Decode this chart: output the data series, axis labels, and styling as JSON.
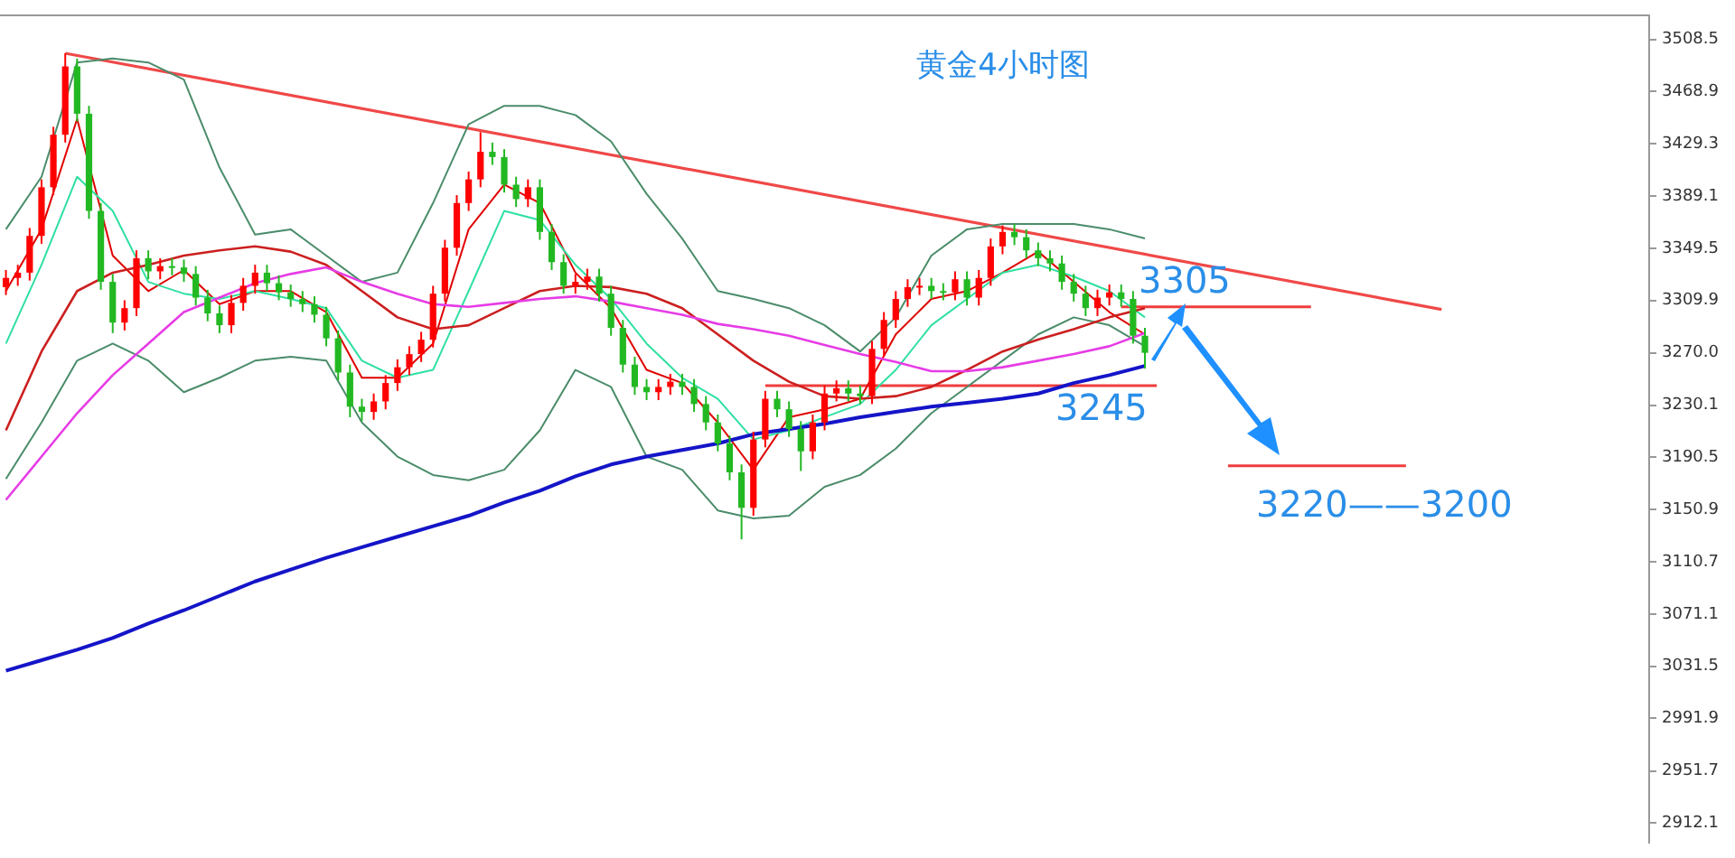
{
  "chart_data": {
    "type": "candlestick",
    "title": "黄金4小时图",
    "categories": [
      null,
      null,
      null,
      null,
      null,
      null,
      null,
      null,
      null,
      null,
      null,
      null,
      null,
      null,
      null,
      null,
      null,
      null,
      null,
      null,
      null,
      null,
      null,
      null,
      null,
      null,
      null,
      null,
      null,
      null,
      null,
      null,
      null,
      null,
      null,
      null,
      null,
      null,
      null,
      null,
      null,
      null,
      null,
      null,
      null,
      null,
      null,
      null,
      null,
      null,
      null,
      null,
      null,
      null,
      null,
      null,
      null,
      null,
      null,
      null,
      null,
      null,
      null,
      null,
      null,
      null,
      null,
      null,
      null,
      null,
      null,
      null,
      null,
      null,
      null,
      null,
      null,
      null,
      null,
      null,
      null,
      null,
      null,
      null,
      null,
      null,
      null,
      null,
      null,
      null,
      null,
      null,
      null,
      null,
      null,
      null,
      null,
      null,
      null,
      null,
      null,
      null,
      null,
      null,
      null,
      null,
      null,
      null,
      null,
      null,
      null,
      null,
      null,
      null,
      null,
      null,
      null,
      null,
      null,
      null,
      null,
      null,
      null,
      null,
      null,
      null,
      null,
      null,
      null,
      null,
      null,
      null,
      null,
      null,
      null,
      null,
      null,
      null,
      null
    ],
    "ohlc": [
      [
        3320,
        3333,
        3314,
        3327
      ],
      [
        3327,
        3337,
        3321,
        3331
      ],
      [
        3331,
        3365,
        3325,
        3359
      ],
      [
        3359,
        3402,
        3353,
        3396
      ],
      [
        3396,
        3442,
        3390,
        3436
      ],
      [
        3436,
        3498,
        3430,
        3488
      ],
      [
        3488,
        3494,
        3446,
        3452
      ],
      [
        3452,
        3458,
        3372,
        3378
      ],
      [
        3378,
        3384,
        3318,
        3324
      ],
      [
        3324,
        3330,
        3285,
        3293
      ],
      [
        3293,
        3310,
        3287,
        3304
      ],
      [
        3304,
        3348,
        3298,
        3342
      ],
      [
        3342,
        3348,
        3326,
        3332
      ],
      [
        3332,
        3342,
        3326,
        3336
      ],
      [
        3336,
        3342,
        3329,
        3335
      ],
      [
        3335,
        3341,
        3324,
        3330
      ],
      [
        3330,
        3336,
        3306,
        3312
      ],
      [
        3312,
        3318,
        3294,
        3300
      ],
      [
        3300,
        3306,
        3285,
        3291
      ],
      [
        3291,
        3314,
        3285,
        3308
      ],
      [
        3308,
        3327,
        3302,
        3321
      ],
      [
        3321,
        3337,
        3315,
        3331
      ],
      [
        3331,
        3337,
        3317,
        3323
      ],
      [
        3323,
        3329,
        3310,
        3316
      ],
      [
        3316,
        3322,
        3305,
        3311
      ],
      [
        3311,
        3317,
        3301,
        3307
      ],
      [
        3307,
        3313,
        3293,
        3299
      ],
      [
        3299,
        3305,
        3275,
        3281
      ],
      [
        3281,
        3287,
        3249,
        3255
      ],
      [
        3255,
        3261,
        3221,
        3229
      ],
      [
        3229,
        3235,
        3218,
        3225
      ],
      [
        3225,
        3239,
        3219,
        3233
      ],
      [
        3233,
        3253,
        3227,
        3247
      ],
      [
        3247,
        3265,
        3241,
        3259
      ],
      [
        3259,
        3275,
        3253,
        3269
      ],
      [
        3269,
        3286,
        3263,
        3280
      ],
      [
        3280,
        3321,
        3274,
        3315
      ],
      [
        3315,
        3356,
        3309,
        3350
      ],
      [
        3350,
        3390,
        3344,
        3384
      ],
      [
        3384,
        3408,
        3378,
        3402
      ],
      [
        3402,
        3438,
        3396,
        3423
      ],
      [
        3423,
        3430,
        3413,
        3419
      ],
      [
        3419,
        3425,
        3392,
        3398
      ],
      [
        3398,
        3404,
        3381,
        3387
      ],
      [
        3387,
        3402,
        3381,
        3396
      ],
      [
        3396,
        3402,
        3356,
        3362
      ],
      [
        3362,
        3368,
        3333,
        3339
      ],
      [
        3339,
        3345,
        3315,
        3321
      ],
      [
        3321,
        3330,
        3315,
        3324
      ],
      [
        3324,
        3334,
        3318,
        3328
      ],
      [
        3328,
        3334,
        3309,
        3315
      ],
      [
        3315,
        3321,
        3283,
        3289
      ],
      [
        3289,
        3295,
        3255,
        3261
      ],
      [
        3261,
        3267,
        3238,
        3244
      ],
      [
        3244,
        3250,
        3234,
        3240
      ],
      [
        3240,
        3250,
        3234,
        3244
      ],
      [
        3244,
        3254,
        3238,
        3248
      ],
      [
        3248,
        3254,
        3238,
        3244
      ],
      [
        3244,
        3250,
        3225,
        3231
      ],
      [
        3231,
        3237,
        3211,
        3217
      ],
      [
        3217,
        3223,
        3195,
        3201
      ],
      [
        3201,
        3207,
        3173,
        3179
      ],
      [
        3179,
        3185,
        3128,
        3152
      ],
      [
        3152,
        3210,
        3146,
        3204
      ],
      [
        3204,
        3241,
        3198,
        3235
      ],
      [
        3235,
        3241,
        3221,
        3227
      ],
      [
        3227,
        3233,
        3206,
        3212
      ],
      [
        3212,
        3218,
        3180,
        3195
      ],
      [
        3195,
        3223,
        3189,
        3217
      ],
      [
        3217,
        3245,
        3211,
        3239
      ],
      [
        3239,
        3249,
        3233,
        3243
      ],
      [
        3243,
        3249,
        3233,
        3239
      ],
      [
        3239,
        3245,
        3231,
        3237
      ],
      [
        3237,
        3279,
        3231,
        3273
      ],
      [
        3273,
        3301,
        3267,
        3295
      ],
      [
        3295,
        3317,
        3289,
        3311
      ],
      [
        3311,
        3326,
        3305,
        3320
      ],
      [
        3320,
        3327,
        3314,
        3321
      ],
      [
        3321,
        3327,
        3311,
        3317
      ],
      [
        3317,
        3323,
        3310,
        3316
      ],
      [
        3316,
        3332,
        3310,
        3326
      ],
      [
        3326,
        3332,
        3306,
        3312
      ],
      [
        3312,
        3333,
        3306,
        3327
      ],
      [
        3327,
        3357,
        3321,
        3351
      ],
      [
        3351,
        3367,
        3345,
        3362
      ],
      [
        3362,
        3368,
        3352,
        3358
      ],
      [
        3358,
        3364,
        3342,
        3348
      ],
      [
        3348,
        3354,
        3336,
        3342
      ],
      [
        3342,
        3348,
        3332,
        3338
      ],
      [
        3338,
        3344,
        3318,
        3324
      ],
      [
        3324,
        3330,
        3309,
        3315
      ],
      [
        3315,
        3321,
        3298,
        3304
      ],
      [
        3304,
        3318,
        3298,
        3312
      ],
      [
        3312,
        3322,
        3306,
        3316
      ],
      [
        3316,
        3322,
        3305,
        3311
      ],
      [
        3311,
        3317,
        3277,
        3283
      ],
      [
        3283,
        3289,
        3258,
        3270
      ],
      null,
      null,
      null,
      null,
      null,
      null,
      null,
      null,
      null,
      null,
      null,
      null,
      null,
      null,
      null,
      null,
      null,
      null,
      null,
      null,
      null,
      null,
      null,
      null,
      null,
      null,
      null,
      null,
      null,
      null,
      null,
      null,
      null,
      null,
      null,
      null,
      null,
      null,
      null,
      null,
      null,
      null
    ],
    "colors": [
      "#ff0000",
      "#ff0000",
      "#ff0000",
      "#ff0000",
      "#ff0000",
      "#ff0000",
      "#22b822",
      "#22b822",
      "#22b822",
      "#22b822",
      "#ff0000",
      "#ff0000",
      "#22b822",
      "#ff0000",
      "#22b822",
      "#22b822",
      "#22b822",
      "#22b822",
      "#22b822",
      "#ff0000",
      "#ff0000",
      "#ff0000",
      "#22b822",
      "#22b822",
      "#22b822",
      "#22b822",
      "#22b822",
      "#22b822",
      "#22b822",
      "#22b822",
      "#22b822",
      "#ff0000",
      "#ff0000",
      "#ff0000",
      "#ff0000",
      "#ff0000",
      "#ff0000",
      "#ff0000",
      "#ff0000",
      "#ff0000",
      "#ff0000",
      "#22b822",
      "#22b822",
      "#22b822",
      "#ff0000",
      "#22b822",
      "#22b822",
      "#22b822",
      "#ff0000",
      "#ff0000",
      "#22b822",
      "#22b822",
      "#22b822",
      "#22b822",
      "#22b822",
      "#ff0000",
      "#ff0000",
      "#22b822",
      "#22b822",
      "#22b822",
      "#22b822",
      "#22b822",
      "#22b822",
      "#ff0000",
      "#ff0000",
      "#22b822",
      "#22b822",
      "#22b822",
      "#ff0000",
      "#ff0000",
      "#ff0000",
      "#22b822",
      "#22b822",
      "#ff0000",
      "#ff0000",
      "#ff0000",
      "#ff0000",
      "#ff0000",
      "#22b822",
      "#22b822",
      "#ff0000",
      "#22b822",
      "#ff0000",
      "#ff0000",
      "#ff0000",
      "#22b822",
      "#22b822",
      "#22b822",
      "#22b822",
      "#22b822",
      "#22b822",
      "#22b822",
      "#ff0000",
      "#ff0000",
      "#22b822",
      "#22b822",
      "#22b822",
      null,
      null,
      null,
      null,
      null,
      null,
      null,
      null,
      null,
      null,
      null,
      null,
      null,
      null,
      null,
      null,
      null,
      null,
      null,
      null,
      null,
      null,
      null,
      null,
      null,
      null,
      null,
      null,
      null,
      null,
      null,
      null,
      null,
      null,
      null,
      null,
      null,
      null,
      null,
      null,
      null,
      null
    ],
    "series": [
      {
        "type": "line",
        "color": "#1414c8",
        "values": [
          3028,
          null,
          null,
          3036,
          null,
          null,
          3044,
          null,
          null,
          3053,
          null,
          null,
          3064,
          null,
          null,
          3074,
          null,
          null,
          3085,
          null,
          null,
          3096,
          null,
          null,
          3105,
          null,
          null,
          3114,
          null,
          null,
          3122,
          null,
          null,
          3130,
          null,
          null,
          3138,
          null,
          null,
          3146,
          null,
          null,
          3156,
          null,
          null,
          3165,
          null,
          null,
          3176,
          null,
          null,
          3185,
          null,
          null,
          3191,
          null,
          null,
          3196,
          null,
          null,
          3201,
          null,
          null,
          3208,
          null,
          null,
          3212,
          null,
          null,
          3216,
          null,
          null,
          3221,
          null,
          null,
          3225,
          null,
          null,
          3229,
          null,
          null,
          3232,
          null,
          null,
          3235,
          null,
          null,
          3239,
          null,
          null,
          3247,
          null,
          null,
          3253,
          null,
          null,
          3260,
          null,
          null,
          null,
          null,
          null,
          null,
          null,
          null,
          null,
          null,
          null,
          null,
          null,
          null,
          null,
          null,
          null,
          null,
          null,
          null,
          null,
          null,
          null,
          null,
          null,
          null,
          null,
          null,
          null,
          null,
          null,
          null,
          null,
          null,
          null,
          null,
          null,
          null,
          null,
          null,
          null,
          null
        ]
      },
      {
        "type": "line",
        "color": "#e63ce6",
        "values": [
          3158,
          null,
          null,
          3191,
          null,
          null,
          3224,
          null,
          null,
          3253,
          null,
          null,
          3277,
          null,
          null,
          3301,
          null,
          null,
          3312,
          null,
          null,
          3323,
          null,
          null,
          3330,
          null,
          null,
          3335,
          null,
          null,
          3324,
          null,
          null,
          3315,
          null,
          null,
          3307,
          null,
          null,
          3305,
          null,
          null,
          3308,
          null,
          null,
          3311,
          null,
          null,
          3313,
          null,
          null,
          3309,
          null,
          null,
          3304,
          null,
          null,
          3299,
          null,
          null,
          3292,
          null,
          null,
          3288,
          null,
          null,
          3283,
          null,
          null,
          3276,
          null,
          null,
          3269,
          null,
          null,
          3263,
          null,
          null,
          3256,
          null,
          null,
          3256,
          null,
          null,
          3259,
          null,
          null,
          3264,
          null,
          null,
          3269,
          null,
          null,
          3275,
          null,
          null,
          3285,
          null,
          null,
          null,
          null,
          null,
          null,
          null,
          null,
          null,
          null,
          null,
          null,
          null,
          null,
          null,
          null,
          null,
          null,
          null,
          null,
          null,
          null,
          null,
          null,
          null,
          null,
          null,
          null,
          null,
          null,
          null,
          null,
          null,
          null,
          null,
          null,
          null,
          null,
          null,
          null,
          null,
          null
        ]
      },
      {
        "type": "line",
        "color": "#cc1f1f",
        "values": [
          3211,
          null,
          null,
          3271,
          null,
          null,
          3317,
          null,
          null,
          3331,
          null,
          null,
          3337,
          null,
          null,
          3344,
          null,
          null,
          3348,
          null,
          null,
          3351,
          null,
          null,
          3347,
          null,
          null,
          3337,
          null,
          null,
          3317,
          null,
          null,
          3297,
          null,
          null,
          3288,
          null,
          null,
          3291,
          null,
          null,
          3304,
          null,
          null,
          3317,
          null,
          null,
          3321,
          null,
          null,
          3320,
          null,
          null,
          3315,
          null,
          null,
          3304,
          null,
          null,
          3284,
          null,
          null,
          3264,
          null,
          null,
          3248,
          null,
          null,
          3237,
          null,
          null,
          3235,
          null,
          null,
          3237,
          null,
          null,
          3244,
          null,
          null,
          3257,
          null,
          null,
          3271,
          null,
          null,
          3280,
          null,
          null,
          3288,
          null,
          null,
          3297,
          null,
          null,
          3304,
          null,
          null,
          null,
          null,
          null,
          null,
          null,
          null,
          null,
          null,
          null,
          null,
          null,
          null,
          null,
          null,
          null,
          null,
          null,
          null,
          null,
          null,
          null,
          null,
          null,
          null,
          null,
          null,
          null,
          null,
          null,
          null,
          null,
          null,
          null,
          null,
          null,
          null,
          null,
          null,
          null,
          null
        ]
      },
      {
        "type": "line",
        "color": "#4a8c6a",
        "values": [
          3364,
          null,
          null,
          3404,
          null,
          null,
          3491,
          null,
          null,
          3494,
          null,
          null,
          3491,
          null,
          null,
          3478,
          null,
          null,
          3411,
          null,
          null,
          3360,
          null,
          null,
          3364,
          null,
          null,
          3344,
          null,
          null,
          3324,
          null,
          null,
          3331,
          null,
          null,
          3384,
          null,
          null,
          3444,
          null,
          null,
          3458,
          null,
          null,
          3458,
          null,
          null,
          3451,
          null,
          null,
          3431,
          null,
          null,
          3391,
          null,
          null,
          3357,
          null,
          null,
          3317,
          null,
          null,
          3311,
          null,
          null,
          3304,
          null,
          null,
          3291,
          null,
          null,
          3271,
          null,
          null,
          3297,
          null,
          null,
          3344,
          null,
          null,
          3364,
          null,
          null,
          3368,
          null,
          null,
          3368,
          null,
          null,
          3368,
          null,
          null,
          3364,
          null,
          null,
          3357,
          null,
          null,
          null,
          null,
          null,
          null,
          null,
          null,
          null,
          null,
          null,
          null,
          null,
          null,
          null,
          null,
          null,
          null,
          null,
          null,
          null,
          null,
          null,
          null,
          null,
          null,
          null,
          null,
          null,
          null,
          null,
          null,
          null,
          null,
          null,
          null,
          null,
          null,
          null,
          null,
          null,
          null
        ]
      },
      {
        "type": "line",
        "color": "#4a8c6a",
        "values": [
          3174,
          null,
          null,
          3217,
          null,
          null,
          3264,
          null,
          null,
          3277,
          null,
          null,
          3264,
          null,
          null,
          3240,
          null,
          null,
          3251,
          null,
          null,
          3264,
          null,
          null,
          3267,
          null,
          null,
          3264,
          null,
          null,
          3217,
          null,
          null,
          3191,
          null,
          null,
          3177,
          null,
          null,
          3173,
          null,
          null,
          3181,
          null,
          null,
          3211,
          null,
          null,
          3257,
          null,
          null,
          3244,
          null,
          null,
          3191,
          null,
          null,
          3181,
          null,
          null,
          3150,
          null,
          null,
          3144,
          null,
          null,
          3146,
          null,
          null,
          3168,
          null,
          null,
          3177,
          null,
          null,
          3197,
          null,
          null,
          3224,
          null,
          null,
          3244,
          null,
          null,
          3264,
          null,
          null,
          3284,
          null,
          null,
          3297,
          null,
          null,
          3291,
          null,
          null,
          3275,
          null,
          null,
          null,
          null,
          null,
          null,
          null,
          null,
          null,
          null,
          null,
          null,
          null,
          null,
          null,
          null,
          null,
          null,
          null,
          null,
          null,
          null,
          null,
          null,
          null,
          null,
          null,
          null,
          null,
          null,
          null,
          null,
          null,
          null,
          null,
          null,
          null,
          null,
          null,
          null,
          null,
          null
        ]
      },
      {
        "type": "line",
        "color": "#2ee0a0",
        "values": [
          3277,
          null,
          null,
          3337,
          null,
          null,
          3404,
          null,
          null,
          3378,
          null,
          null,
          3324,
          null,
          null,
          3315,
          null,
          null,
          3311,
          null,
          null,
          3317,
          null,
          null,
          3311,
          null,
          null,
          3304,
          null,
          null,
          3264,
          null,
          null,
          3251,
          null,
          null,
          3257,
          null,
          null,
          3317,
          null,
          null,
          3378,
          null,
          null,
          3371,
          null,
          null,
          3337,
          null,
          null,
          3311,
          null,
          null,
          3277,
          null,
          null,
          3251,
          null,
          null,
          3235,
          null,
          null,
          3204,
          null,
          null,
          3211,
          null,
          null,
          3221,
          null,
          null,
          3231,
          null,
          null,
          3257,
          null,
          null,
          3291,
          null,
          null,
          3311,
          null,
          null,
          3331,
          null,
          null,
          3337,
          null,
          null,
          3328,
          null,
          null,
          3317,
          null,
          null,
          3297,
          null,
          null,
          null,
          null,
          null,
          null,
          null,
          null,
          null,
          null,
          null,
          null,
          null,
          null,
          null,
          null,
          null,
          null,
          null,
          null,
          null,
          null,
          null,
          null,
          null,
          null,
          null,
          null,
          null,
          null,
          null,
          null,
          null,
          null,
          null,
          null,
          null,
          null,
          null,
          null,
          null,
          null
        ]
      },
      {
        "type": "line",
        "color": "#e00000",
        "values": [
          3317,
          null,
          null,
          3364,
          null,
          null,
          3448,
          null,
          null,
          3344,
          null,
          null,
          3317,
          null,
          null,
          3333,
          null,
          null,
          3307,
          null,
          null,
          3317,
          null,
          null,
          3317,
          null,
          null,
          3301,
          null,
          null,
          3251,
          null,
          null,
          3251,
          null,
          null,
          3277,
          null,
          null,
          3364,
          null,
          null,
          3398,
          null,
          null,
          3384,
          null,
          null,
          3331,
          null,
          null,
          3304,
          null,
          null,
          3257,
          null,
          null,
          3247,
          null,
          null,
          3217,
          null,
          null,
          3181,
          null,
          null,
          3221,
          null,
          null,
          3227,
          null,
          null,
          3235,
          null,
          null,
          3284,
          null,
          null,
          3311,
          null,
          null,
          3317,
          null,
          null,
          3331,
          null,
          null,
          3347,
          null,
          null,
          3324,
          null,
          null,
          3301,
          null,
          null,
          3284,
          null,
          null,
          null,
          null,
          null,
          null,
          null,
          null,
          null,
          null,
          null,
          null,
          null,
          null,
          null,
          null,
          null,
          null,
          null,
          null,
          null,
          null,
          null,
          null,
          null,
          null,
          null,
          null,
          null,
          null,
          null,
          null,
          null,
          null,
          null,
          null,
          null,
          null,
          null,
          null,
          null,
          null
        ]
      },
      {
        "type": "line",
        "color": "#f04848",
        "values": [
          null,
          null,
          null,
          null,
          null,
          3498,
          null,
          null,
          null,
          null,
          null,
          null,
          null,
          null,
          null,
          null,
          null,
          null,
          null,
          null,
          null,
          null,
          null,
          null,
          null,
          null,
          null,
          null,
          null,
          null,
          null,
          null,
          null,
          null,
          null,
          null,
          null,
          null,
          null,
          null,
          null,
          null,
          null,
          null,
          null,
          null,
          null,
          null,
          null,
          null,
          null,
          null,
          null,
          null,
          null,
          null,
          null,
          null,
          null,
          null,
          null,
          null,
          null,
          null,
          null,
          null,
          null,
          null,
          null,
          null,
          null,
          null,
          null,
          null,
          null,
          null,
          null,
          null,
          null,
          null,
          null,
          null,
          null,
          null,
          null,
          null,
          null,
          null,
          null,
          null,
          null,
          null,
          null,
          null,
          null,
          null,
          null,
          null,
          null,
          null,
          null,
          null,
          null,
          null,
          null,
          null,
          null,
          null,
          null,
          null,
          null,
          null,
          null,
          null,
          null,
          null,
          null,
          null,
          null,
          null,
          null,
          3303,
          null,
          null,
          null,
          null,
          null,
          null,
          null,
          null,
          null,
          null,
          null,
          null,
          null,
          null,
          null,
          null,
          null
        ]
      },
      {
        "type": "line",
        "color": "#f03c3c",
        "values": [
          null,
          null,
          null,
          null,
          null,
          null,
          null,
          null,
          null,
          null,
          null,
          null,
          null,
          null,
          null,
          null,
          null,
          null,
          null,
          null,
          null,
          null,
          null,
          null,
          null,
          null,
          null,
          null,
          null,
          null,
          null,
          null,
          null,
          null,
          null,
          null,
          null,
          null,
          null,
          null,
          null,
          null,
          null,
          null,
          null,
          null,
          null,
          null,
          null,
          null,
          null,
          null,
          null,
          null,
          null,
          null,
          null,
          null,
          null,
          null,
          null,
          null,
          null,
          null,
          null,
          null,
          null,
          null,
          null,
          null,
          null,
          null,
          null,
          null,
          null,
          null,
          null,
          null,
          null,
          null,
          null,
          null,
          null,
          null,
          null,
          null,
          null,
          null,
          null,
          null,
          null,
          null,
          null,
          null,
          3305,
          null,
          null,
          null,
          null,
          null,
          null,
          null,
          null,
          null,
          null,
          null,
          null,
          null,
          null,
          null,
          3305,
          null,
          null,
          null,
          null,
          null,
          null,
          null,
          null,
          null,
          null,
          null,
          null,
          null,
          null,
          null,
          null,
          null,
          null,
          null,
          null,
          null,
          null,
          null,
          null,
          null,
          null,
          null,
          null
        ]
      },
      {
        "type": "line",
        "color": "#f03c3c",
        "values": [
          null,
          null,
          null,
          null,
          null,
          null,
          null,
          null,
          null,
          null,
          null,
          null,
          null,
          null,
          null,
          null,
          null,
          null,
          null,
          null,
          null,
          null,
          null,
          null,
          null,
          null,
          null,
          null,
          null,
          null,
          null,
          null,
          null,
          null,
          null,
          null,
          null,
          null,
          null,
          null,
          null,
          null,
          null,
          null,
          null,
          null,
          null,
          null,
          null,
          null,
          null,
          null,
          null,
          null,
          null,
          null,
          null,
          null,
          null,
          null,
          null,
          null,
          null,
          null,
          3245,
          null,
          null,
          null,
          null,
          null,
          null,
          null,
          null,
          null,
          null,
          null,
          null,
          null,
          null,
          null,
          null,
          null,
          null,
          null,
          null,
          null,
          null,
          null,
          null,
          null,
          null,
          null,
          null,
          null,
          null,
          null,
          null,
          3245,
          null,
          null,
          null,
          null,
          null,
          null,
          null,
          null,
          null,
          null,
          null,
          null,
          null,
          null,
          null,
          null,
          null,
          null,
          null,
          null,
          null,
          null,
          null,
          null,
          null,
          null,
          null,
          null,
          null,
          null,
          null,
          null,
          null,
          null,
          null,
          null,
          null,
          null,
          null,
          null,
          null
        ]
      },
      {
        "type": "line",
        "color": "#f03c3c",
        "values": [
          null,
          null,
          null,
          null,
          null,
          null,
          null,
          null,
          null,
          null,
          null,
          null,
          null,
          null,
          null,
          null,
          null,
          null,
          null,
          null,
          null,
          null,
          null,
          null,
          null,
          null,
          null,
          null,
          null,
          null,
          null,
          null,
          null,
          null,
          null,
          null,
          null,
          null,
          null,
          null,
          null,
          null,
          null,
          null,
          null,
          null,
          null,
          null,
          null,
          null,
          null,
          null,
          null,
          null,
          null,
          null,
          null,
          null,
          null,
          null,
          null,
          null,
          null,
          null,
          null,
          null,
          null,
          null,
          null,
          null,
          null,
          null,
          null,
          null,
          null,
          null,
          null,
          null,
          null,
          null,
          null,
          null,
          null,
          null,
          null,
          null,
          null,
          null,
          null,
          null,
          null,
          null,
          null,
          null,
          null,
          null,
          null,
          null,
          null,
          null,
          null,
          null,
          null,
          3184,
          null,
          null,
          null,
          null,
          null,
          null,
          null,
          null,
          null,
          null,
          null,
          null,
          null,
          null,
          3184,
          null,
          null,
          null,
          null,
          null,
          null,
          null,
          null,
          null,
          null,
          null,
          null,
          null,
          null,
          null,
          null,
          null,
          null,
          null,
          null
        ]
      }
    ],
    "annotations": [
      {
        "text": "3305",
        "y": 3305
      },
      {
        "text": "3245",
        "y": 3245
      },
      {
        "text": "3220——3200",
        "y": 3184
      }
    ],
    "ylim": [
      2897,
      3527
    ],
    "yticks": [
      2912.1,
      2951.7,
      2991.9,
      3031.5,
      3071.1,
      3110.7,
      3150.9,
      3190.5,
      3230.1,
      {
        "value": 3270,
        "label": "3270.0"
      },
      3309.9,
      3349.5,
      3389.1,
      3429.3,
      3468.9,
      3508.5
    ],
    "tick_labels": "y",
    "grid": false,
    "legend": false,
    "marker": "none"
  }
}
